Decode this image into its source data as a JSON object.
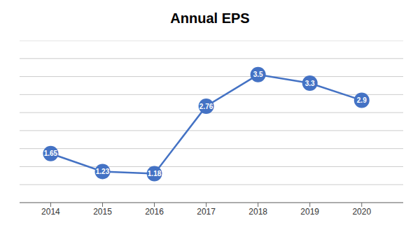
{
  "chart_data": {
    "type": "line",
    "title": "Annual EPS",
    "x": [
      2014,
      2015,
      2016,
      2017,
      2018,
      2019,
      2020
    ],
    "values": [
      1.65,
      1.23,
      1.18,
      2.76,
      3.5,
      3.3,
      2.9
    ],
    "color": "#4472C4",
    "xlim": [
      2013.4,
      2020.8
    ],
    "xticks": [
      2014,
      2015,
      2016,
      2017,
      2018,
      2019,
      2020
    ],
    "ylim": [
      0.5,
      4.3
    ],
    "yticks": [
      0.5,
      0.9222222222222222,
      1.3444444444444446,
      1.7666666666666666,
      2.188888888888889,
      2.6111111111111107,
      3.033333333333333,
      3.4555555555555557,
      3.877777777777778,
      4.3
    ],
    "grid": true,
    "data_labels": true,
    "tick_labels": "x"
  }
}
